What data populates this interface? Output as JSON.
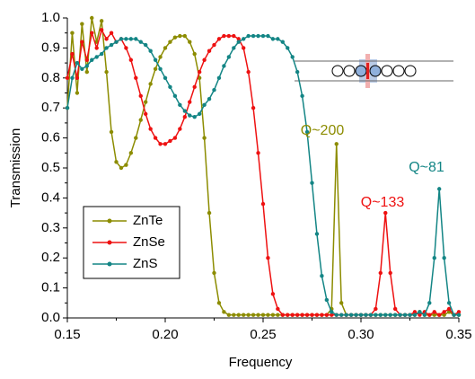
{
  "chart_data": {
    "type": "line",
    "x_label": "Frequency",
    "y_label": "Transmission",
    "xlim": [
      0.15,
      0.35
    ],
    "ylim": [
      0,
      1
    ],
    "xticks": [
      0.15,
      {
        "value": 0.2,
        "label": "0.20"
      },
      0.25,
      {
        "value": 0.3,
        "label": "0.30"
      },
      0.35
    ],
    "yticks": [
      {
        "value": 0,
        "label": "0.0"
      },
      0.1,
      0.2,
      0.3,
      0.4,
      0.5,
      0.6,
      0.7,
      0.8,
      0.9,
      {
        "value": 1,
        "label": "1.0"
      }
    ],
    "legend": "lower left",
    "x": [
      0.15,
      0.1525,
      0.155,
      0.1575,
      0.16,
      0.1625,
      0.165,
      0.1675,
      0.17,
      0.1725,
      0.175,
      0.1775,
      0.18,
      0.1825,
      0.185,
      0.1875,
      0.19,
      0.1925,
      0.195,
      0.1975,
      0.2,
      0.2025,
      0.205,
      0.2075,
      0.21,
      0.2125,
      0.215,
      0.2175,
      0.22,
      0.2225,
      0.225,
      0.2275,
      0.23,
      0.2325,
      0.235,
      0.2375,
      0.24,
      0.2425,
      0.245,
      0.2475,
      0.25,
      0.2525,
      0.255,
      0.2575,
      0.26,
      0.2625,
      0.265,
      0.2675,
      0.27,
      0.2725,
      0.275,
      0.2775,
      0.28,
      0.2825,
      0.285,
      0.2875,
      0.29,
      0.2925,
      0.295,
      0.2975,
      0.3,
      0.3025,
      0.305,
      0.3075,
      0.31,
      0.3125,
      0.315,
      0.3175,
      0.32,
      0.3225,
      0.325,
      0.3275,
      0.33,
      0.3325,
      0.335,
      0.3375,
      0.34,
      0.3425,
      0.345,
      0.3475,
      0.35
    ],
    "series": [
      {
        "name": "ZnTe",
        "color": "#8c8c00",
        "annotation": "Q~200",
        "values": [
          0.7,
          0.95,
          0.75,
          0.98,
          0.82,
          1.0,
          0.92,
          0.99,
          0.82,
          0.62,
          0.52,
          0.5,
          0.51,
          0.55,
          0.6,
          0.66,
          0.72,
          0.78,
          0.83,
          0.87,
          0.9,
          0.92,
          0.935,
          0.94,
          0.94,
          0.92,
          0.88,
          0.8,
          0.6,
          0.35,
          0.15,
          0.05,
          0.02,
          0.01,
          0.01,
          0.01,
          0.01,
          0.01,
          0.01,
          0.01,
          0.01,
          0.01,
          0.01,
          0.01,
          0.01,
          0.01,
          0.01,
          0.01,
          0.01,
          0.01,
          0.01,
          0.01,
          0.01,
          0.01,
          0.03,
          0.58,
          0.05,
          0.01,
          0.01,
          0.01,
          0.01,
          0.01,
          0.01,
          0.01,
          0.01,
          0.01,
          0.01,
          0.01,
          0.01,
          0.01,
          0.01,
          0.01,
          0.02,
          0.01,
          0.01,
          0.01,
          0.01,
          0.01,
          0.02,
          0.01,
          0.01
        ]
      },
      {
        "name": "ZnSe",
        "color": "#ee1111",
        "annotation": "Q~133",
        "values": [
          0.8,
          0.88,
          0.8,
          0.92,
          0.86,
          0.95,
          0.9,
          0.96,
          0.93,
          0.95,
          0.92,
          0.93,
          0.9,
          0.86,
          0.8,
          0.74,
          0.68,
          0.63,
          0.6,
          0.58,
          0.58,
          0.59,
          0.6,
          0.63,
          0.67,
          0.72,
          0.77,
          0.82,
          0.86,
          0.89,
          0.91,
          0.93,
          0.94,
          0.94,
          0.94,
          0.93,
          0.9,
          0.82,
          0.7,
          0.55,
          0.38,
          0.2,
          0.08,
          0.03,
          0.01,
          0.01,
          0.01,
          0.01,
          0.01,
          0.01,
          0.01,
          0.01,
          0.01,
          0.01,
          0.01,
          0.01,
          0.01,
          0.01,
          0.01,
          0.01,
          0.01,
          0.01,
          0.01,
          0.03,
          0.15,
          0.35,
          0.15,
          0.03,
          0.01,
          0.01,
          0.01,
          0.02,
          0.01,
          0.02,
          0.01,
          0.02,
          0.01,
          0.02,
          0.03,
          0.01,
          0.02
        ]
      },
      {
        "name": "ZnS",
        "color": "#138585",
        "annotation": "Q~81",
        "values": [
          0.7,
          0.8,
          0.85,
          0.83,
          0.84,
          0.86,
          0.87,
          0.88,
          0.9,
          0.91,
          0.92,
          0.93,
          0.93,
          0.93,
          0.93,
          0.92,
          0.91,
          0.89,
          0.86,
          0.83,
          0.8,
          0.77,
          0.74,
          0.71,
          0.69,
          0.675,
          0.67,
          0.68,
          0.71,
          0.73,
          0.76,
          0.8,
          0.84,
          0.87,
          0.9,
          0.92,
          0.93,
          0.94,
          0.94,
          0.94,
          0.94,
          0.94,
          0.93,
          0.93,
          0.92,
          0.9,
          0.87,
          0.82,
          0.74,
          0.62,
          0.45,
          0.28,
          0.14,
          0.06,
          0.02,
          0.01,
          0.01,
          0.01,
          0.01,
          0.01,
          0.01,
          0.01,
          0.01,
          0.01,
          0.01,
          0.01,
          0.01,
          0.01,
          0.01,
          0.01,
          0.01,
          0.01,
          0.02,
          0.01,
          0.05,
          0.2,
          0.43,
          0.2,
          0.05,
          0.01,
          0.01
        ]
      }
    ]
  }
}
